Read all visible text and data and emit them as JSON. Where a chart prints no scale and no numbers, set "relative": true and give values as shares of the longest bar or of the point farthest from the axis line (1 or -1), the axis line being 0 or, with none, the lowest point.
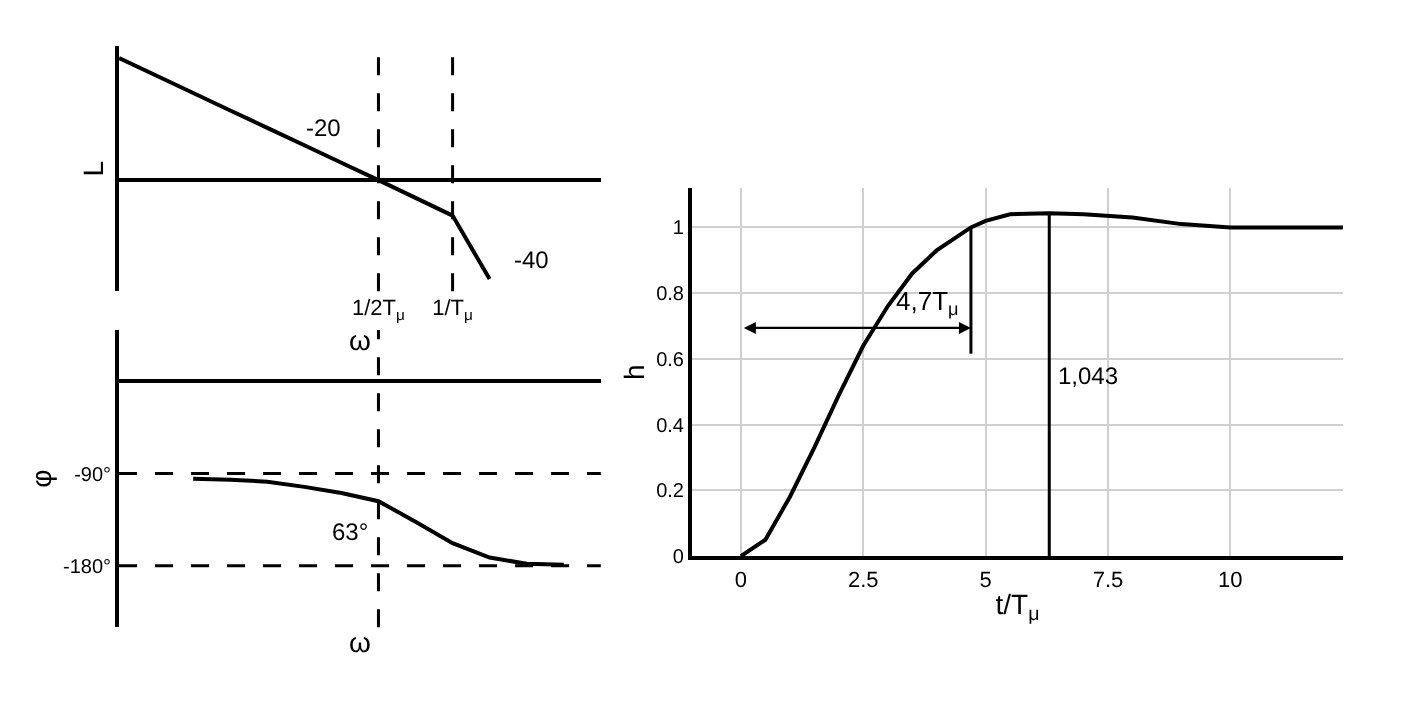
{
  "chart_data": [
    {
      "type": "line",
      "relative": true,
      "ylabel": "L",
      "xlabel": "ω",
      "tick_labels": "x",
      "grid": false,
      "marker": "none",
      "line_style": "solid",
      "categories": [
        null,
        null,
        null,
        null,
        null,
        null,
        null,
        "1/2T$_{μ}$",
        null,
        "1/T$_{μ}$",
        null,
        null,
        null,
        null
      ],
      "series": [
        {
          "color": "#000000",
          "values": [
            1,
            0.857,
            0.714,
            0.571,
            0.429,
            0.286,
            0.143,
            0,
            -0.145,
            -0.29,
            -0.81,
            null,
            null,
            null
          ]
        }
      ],
      "ref_lines": [
        {
          "axis": "x",
          "value": "1/2T$_{μ}$",
          "label": null,
          "color": "#000000",
          "line_style": "dashed"
        },
        {
          "axis": "x",
          "value": "1/T$_{μ}$",
          "label": null,
          "color": "#000000",
          "line_style": "dashed"
        }
      ],
      "annotations": [
        "-20",
        "-40"
      ]
    },
    {
      "type": "line",
      "ylabel": "φ",
      "xlabel": "ω",
      "ylim": [
        -240,
        50
      ],
      "yticks": [
        {
          "value": -90,
          "label": "-90°"
        },
        {
          "value": -180,
          "label": "-180°"
        }
      ],
      "tick_labels": "y",
      "grid": false,
      "marker": "none",
      "line_style": "solid",
      "categories": [
        null,
        null,
        null,
        null,
        null,
        null,
        null,
        "1/2T$_{μ}$",
        null,
        "1/T$_{μ}$",
        null,
        null,
        null,
        null
      ],
      "series": [
        {
          "color": "#000000",
          "values": [
            null,
            null,
            -95,
            -96,
            -98,
            -103,
            -109,
            -117,
            -137,
            -158,
            -172,
            -178,
            -179,
            null
          ]
        }
      ],
      "ref_lines": [
        {
          "axis": "x",
          "value": "1/2T$_{μ}$",
          "label": null,
          "color": "#000000",
          "line_style": "dashed"
        },
        {
          "axis": "y",
          "value": -90,
          "label": null,
          "color": "#000000",
          "line_style": "dashed"
        },
        {
          "axis": "y",
          "value": -180,
          "label": null,
          "color": "#000000",
          "line_style": "dashed"
        }
      ],
      "annotations": [
        {
          "text": "63°",
          "x": "1/2T$_{μ}$",
          "y": -117
        }
      ]
    },
    {
      "type": "line",
      "ylabel": "h",
      "xlabel": "t/T$_{μ}$",
      "xlim": [
        -1,
        12.3
      ],
      "ylim": [
        0,
        1.12
      ],
      "xticks": [
        0,
        2.5,
        5,
        7.5,
        10
      ],
      "yticks": [
        0,
        0.2,
        0.4,
        0.6,
        0.8,
        1
      ],
      "grid": true,
      "marker": "none",
      "line_style": "solid",
      "x": [
        0,
        0.5,
        1,
        1.5,
        2,
        2.5,
        3,
        3.5,
        4,
        4.7,
        5,
        5.5,
        6.3,
        7,
        8,
        9,
        10,
        11,
        12.3
      ],
      "series": [
        {
          "color": "#000000",
          "values": [
            0,
            0.05,
            0.18,
            0.33,
            0.49,
            0.64,
            0.76,
            0.86,
            0.93,
            1.0,
            1.02,
            1.04,
            1.043,
            1.04,
            1.03,
            1.01,
            1.0,
            1.0,
            1.0
          ]
        }
      ],
      "ref_lines": [
        {
          "axis": "x",
          "value": 4.7,
          "label": "4,7T$_{μ}$",
          "color": "#000000",
          "line_style": "solid"
        },
        {
          "axis": "x",
          "value": 6.3,
          "label": null,
          "color": "#000000",
          "line_style": "solid"
        }
      ],
      "annotations": [
        "1,043"
      ]
    }
  ]
}
